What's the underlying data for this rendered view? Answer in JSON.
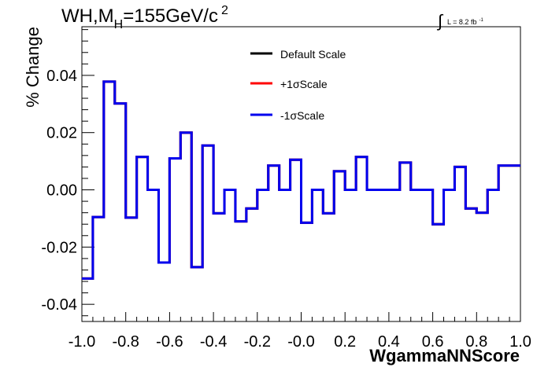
{
  "chart_data": {
    "type": "step",
    "title": {
      "main": "WH,M",
      "sub": "H",
      "rest": "=155GeV/c",
      "sup": "2"
    },
    "lumi_label": {
      "prefix": "∫",
      "text": "L = 8.2 fb",
      "sup": "-1"
    },
    "xlabel": "WgammaNNScore",
    "ylabel": "% Change",
    "xlim": [
      -1.0,
      1.0
    ],
    "ylim": [
      -0.046,
      0.057
    ],
    "xticks": [
      -1.0,
      -0.8,
      -0.6,
      -0.4,
      -0.2,
      0.0,
      0.2,
      0.4,
      0.6,
      0.8,
      1.0
    ],
    "xtick_labels": [
      "-1.0",
      "-0.8",
      "-0.6",
      "-0.4",
      "-0.2",
      "-0.0",
      "0.2",
      "0.4",
      "0.6",
      "0.8",
      "1.0"
    ],
    "yticks": [
      -0.04,
      -0.02,
      0.0,
      0.02,
      0.04
    ],
    "ytick_labels": [
      "-0.04",
      "-0.02",
      "0.00",
      "0.02",
      "0.04"
    ],
    "bin_edges": [
      -1.0,
      -0.95,
      -0.9,
      -0.85,
      -0.8,
      -0.75,
      -0.7,
      -0.65,
      -0.6,
      -0.55,
      -0.5,
      -0.45,
      -0.4,
      -0.35,
      -0.3,
      -0.25,
      -0.2,
      -0.15,
      -0.1,
      -0.05,
      0.0,
      0.05,
      0.1,
      0.15,
      0.2,
      0.25,
      0.3,
      0.35,
      0.4,
      0.45,
      0.5,
      0.55,
      0.6,
      0.65,
      0.7,
      0.75,
      0.8,
      0.85,
      0.9,
      0.95,
      1.0
    ],
    "legend": {
      "position": "top-center"
    },
    "series": [
      {
        "name": "Default Scale",
        "color": "#000000",
        "values": [
          -0.031,
          -0.0095,
          0.0378,
          0.0302,
          -0.0097,
          0.0115,
          0.0,
          -0.0254,
          0.011,
          0.02,
          -0.027,
          0.0155,
          -0.0082,
          0.0,
          -0.011,
          -0.0065,
          0.0,
          0.0085,
          0.0,
          0.0105,
          -0.0115,
          0.0,
          -0.0082,
          0.0065,
          0.0,
          0.0115,
          0.0,
          0.0,
          0.0,
          0.0095,
          0.0,
          0.0,
          -0.012,
          0.0,
          0.008,
          -0.0065,
          -0.008,
          0.0,
          0.0085,
          0.0085
        ]
      },
      {
        "name": "+1σScale",
        "color": "#ff0000",
        "values": [
          -0.031,
          -0.0095,
          0.0378,
          0.0302,
          -0.0097,
          0.0115,
          0.0,
          -0.0254,
          0.011,
          0.02,
          -0.027,
          0.0155,
          -0.0082,
          0.0,
          -0.011,
          -0.0065,
          0.0,
          0.0085,
          0.0,
          0.0105,
          -0.0115,
          0.0,
          -0.0082,
          0.0065,
          0.0,
          0.0115,
          0.0,
          0.0,
          0.0,
          0.0095,
          0.0,
          0.0,
          -0.012,
          0.0,
          0.008,
          -0.0065,
          -0.008,
          0.0,
          0.0085,
          0.0085
        ]
      },
      {
        "name": "-1σScale",
        "color": "#0000ee",
        "values": [
          -0.031,
          -0.0095,
          0.0378,
          0.0302,
          -0.0097,
          0.0115,
          0.0,
          -0.0254,
          0.011,
          0.02,
          -0.027,
          0.0155,
          -0.0082,
          0.0,
          -0.011,
          -0.0065,
          0.0,
          0.0085,
          0.0,
          0.0105,
          -0.0115,
          0.0,
          -0.0082,
          0.0065,
          0.0,
          0.0115,
          0.0,
          0.0,
          0.0,
          0.0095,
          0.0,
          0.0,
          -0.012,
          0.0,
          0.008,
          -0.0065,
          -0.008,
          0.0,
          0.0085,
          0.0085
        ]
      }
    ]
  }
}
